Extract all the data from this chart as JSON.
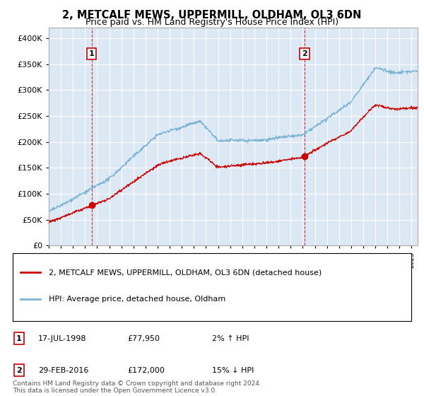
{
  "title": "2, METCALF MEWS, UPPERMILL, OLDHAM, OL3 6DN",
  "subtitle": "Price paid vs. HM Land Registry's House Price Index (HPI)",
  "title_fontsize": 10.5,
  "subtitle_fontsize": 9,
  "ylim": [
    0,
    420000
  ],
  "yticks": [
    0,
    50000,
    100000,
    150000,
    200000,
    250000,
    300000,
    350000,
    400000
  ],
  "hpi_color": "#7ab3d4",
  "price_color": "#cc0000",
  "dashed_color": "#cc0000",
  "background_color": "#ffffff",
  "plot_bg_color": "#dce9f5",
  "grid_color": "#ffffff",
  "sale1": {
    "date_num": 1998.54,
    "price": 77950,
    "label": "1"
  },
  "sale2": {
    "date_num": 2016.16,
    "price": 172000,
    "label": "2"
  },
  "legend_label_red": "2, METCALF MEWS, UPPERMILL, OLDHAM, OL3 6DN (detached house)",
  "legend_label_blue": "HPI: Average price, detached house, Oldham",
  "table_rows": [
    {
      "num": "1",
      "date": "17-JUL-1998",
      "price": "£77,950",
      "change": "2% ↑ HPI"
    },
    {
      "num": "2",
      "date": "29-FEB-2016",
      "price": "£172,000",
      "change": "15% ↓ HPI"
    }
  ],
  "footer": "Contains HM Land Registry data © Crown copyright and database right 2024.\nThis data is licensed under the Open Government Licence v3.0.",
  "xmin": 1995,
  "xmax": 2025.5
}
